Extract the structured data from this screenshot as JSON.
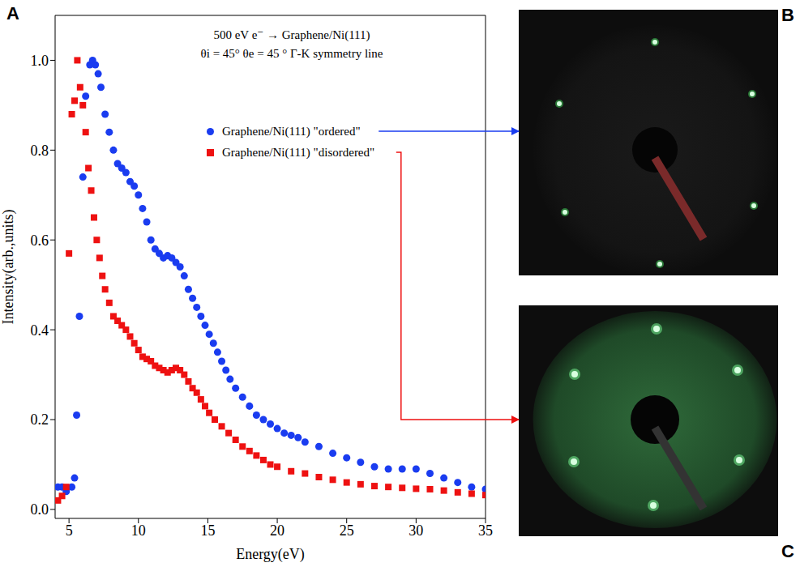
{
  "panel_labels": [
    "A",
    "B",
    "C"
  ],
  "chart_data": {
    "type": "scatter",
    "annotations": [
      "500 eV e⁻ → Graphene/Ni(111)",
      "θi = 45°  θe = 45 ° Γ-K symmetry line"
    ],
    "x_label": "Energy(eV)",
    "y_label": "Intensity(arb.,units)",
    "xlim": [
      4,
      35
    ],
    "xticks": [
      5,
      10,
      15,
      20,
      25,
      30,
      35
    ],
    "ylim": [
      -0.02,
      1.1
    ],
    "yticks": [
      {
        "value": 0,
        "label": "0.0"
      },
      0.2,
      0.4,
      0.6,
      0.8,
      {
        "value": 1,
        "label": "1.0"
      }
    ],
    "legend": "upper right",
    "series": [
      {
        "name": "Graphene/Ni(111) \"ordered\"",
        "color": "#1a3cf0",
        "marker": "circle",
        "x": [
          4.2,
          4.5,
          4.8,
          5.2,
          5.4,
          5.55,
          5.75,
          6.0,
          6.2,
          6.5,
          6.7,
          6.9,
          7.1,
          7.3,
          7.6,
          7.9,
          8.2,
          8.5,
          8.8,
          9.1,
          9.4,
          9.7,
          10.0,
          10.3,
          10.6,
          10.9,
          11.2,
          11.5,
          11.8,
          12.1,
          12.4,
          12.7,
          13.0,
          13.3,
          13.6,
          13.9,
          14.2,
          14.5,
          14.8,
          15.1,
          15.4,
          15.7,
          16.0,
          16.3,
          16.6,
          17.0,
          17.5,
          18.0,
          18.5,
          19.0,
          19.5,
          20.0,
          20.5,
          21.0,
          21.5,
          22.0,
          23.0,
          24.0,
          25.0,
          26.0,
          27.0,
          28.0,
          29.0,
          30.0,
          31.0,
          32.0,
          33.0,
          34.0,
          35.0
        ],
        "values": [
          0.05,
          0.05,
          0.04,
          0.05,
          0.07,
          0.21,
          0.43,
          0.74,
          0.92,
          0.99,
          1.0,
          0.99,
          0.97,
          0.94,
          0.88,
          0.84,
          0.8,
          0.77,
          0.76,
          0.75,
          0.73,
          0.72,
          0.7,
          0.67,
          0.64,
          0.6,
          0.58,
          0.57,
          0.56,
          0.565,
          0.56,
          0.55,
          0.54,
          0.52,
          0.49,
          0.47,
          0.45,
          0.43,
          0.41,
          0.39,
          0.37,
          0.35,
          0.33,
          0.31,
          0.29,
          0.27,
          0.25,
          0.23,
          0.21,
          0.2,
          0.19,
          0.18,
          0.17,
          0.165,
          0.16,
          0.15,
          0.14,
          0.125,
          0.115,
          0.105,
          0.095,
          0.09,
          0.09,
          0.09,
          0.08,
          0.07,
          0.06,
          0.05,
          0.045
        ]
      },
      {
        "name": "Graphene/Ni(111) \"disordered\"",
        "color": "#ee1111",
        "marker": "square",
        "x": [
          4.2,
          4.5,
          4.8,
          5.0,
          5.2,
          5.4,
          5.6,
          5.8,
          6.0,
          6.2,
          6.4,
          6.6,
          6.8,
          7.0,
          7.2,
          7.4,
          7.6,
          7.9,
          8.2,
          8.5,
          8.8,
          9.1,
          9.4,
          9.7,
          10.0,
          10.3,
          10.6,
          10.9,
          11.2,
          11.5,
          11.8,
          12.1,
          12.4,
          12.7,
          13.0,
          13.3,
          13.6,
          13.9,
          14.2,
          14.5,
          14.8,
          15.1,
          15.5,
          16.0,
          16.5,
          17.0,
          17.5,
          18.0,
          18.5,
          19.0,
          19.5,
          20.0,
          21.0,
          22.0,
          23.0,
          24.0,
          25.0,
          26.0,
          27.0,
          28.0,
          29.0,
          30.0,
          31.0,
          32.0,
          33.0,
          34.0,
          35.0
        ],
        "values": [
          0.02,
          0.03,
          0.05,
          0.57,
          0.88,
          0.91,
          1.0,
          0.94,
          0.9,
          0.84,
          0.76,
          0.71,
          0.65,
          0.6,
          0.56,
          0.52,
          0.49,
          0.46,
          0.43,
          0.42,
          0.41,
          0.4,
          0.385,
          0.37,
          0.355,
          0.34,
          0.335,
          0.33,
          0.32,
          0.315,
          0.31,
          0.305,
          0.31,
          0.315,
          0.31,
          0.3,
          0.285,
          0.27,
          0.26,
          0.245,
          0.23,
          0.215,
          0.2,
          0.185,
          0.17,
          0.155,
          0.14,
          0.13,
          0.12,
          0.11,
          0.1,
          0.095,
          0.085,
          0.08,
          0.072,
          0.066,
          0.06,
          0.056,
          0.052,
          0.05,
          0.048,
          0.046,
          0.045,
          0.042,
          0.038,
          0.035,
          0.032
        ]
      }
    ]
  }
}
